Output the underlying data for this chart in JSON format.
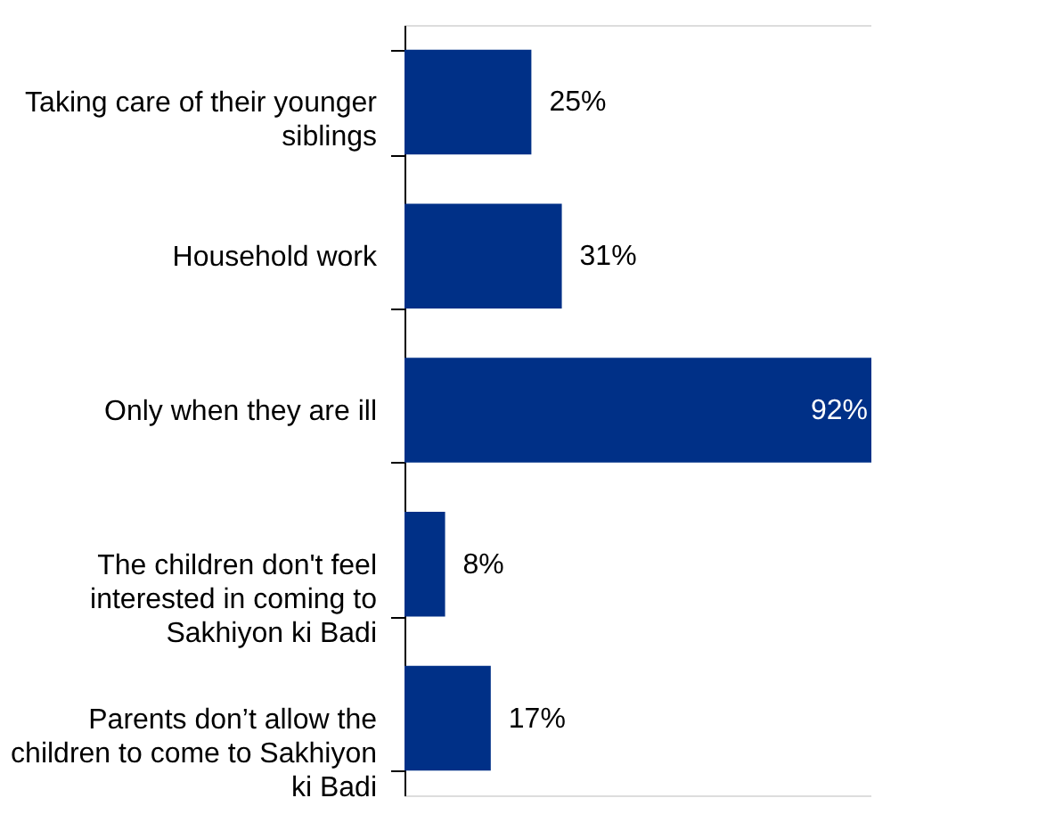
{
  "chart_data": {
    "type": "bar",
    "orientation": "horizontal",
    "categories": [
      "Taking care of their younger siblings",
      "Household work",
      "Only when they are ill",
      "The children don't feel interested in coming to Sakhiyon ki Badi",
      "Parents don’t allow the children to come to Sakhiyon ki Badi"
    ],
    "values": [
      25,
      31,
      92,
      8,
      17
    ],
    "value_labels": [
      "25%",
      "31%",
      "92%",
      "8%",
      "17%"
    ],
    "color": "#003087",
    "xlim": [
      0,
      92
    ],
    "tick_labels": "y",
    "legend": false
  }
}
